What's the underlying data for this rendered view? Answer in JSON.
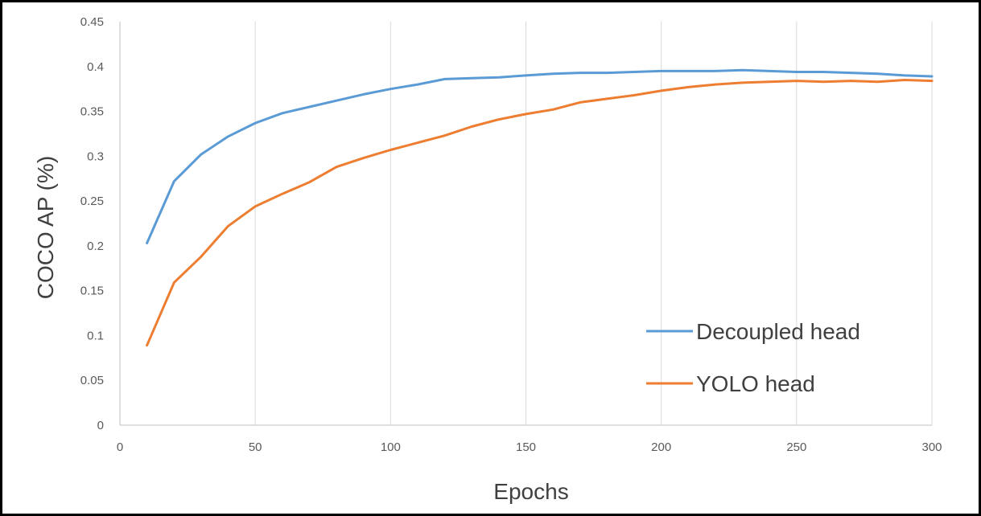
{
  "chart_data": {
    "type": "line",
    "title": "",
    "xlabel": "Epochs",
    "ylabel": "COCO AP (%)",
    "xlim": [
      0,
      300
    ],
    "ylim": [
      0,
      0.45
    ],
    "xticks": [
      0,
      50,
      100,
      150,
      200,
      250,
      300
    ],
    "xtick_labels": [
      "0",
      "50",
      "100",
      "150",
      "200",
      "250",
      "300"
    ],
    "yticks": [
      0,
      0.05,
      0.1,
      0.15,
      0.2,
      0.25,
      0.3,
      0.35,
      0.4,
      0.45
    ],
    "ytick_labels": [
      "0",
      "0.05",
      "0.1",
      "0.15",
      "0.2",
      "0.25",
      "0.3",
      "0.35",
      "0.4",
      "0.45"
    ],
    "grid": "vertical",
    "legend_position": "bottom-right",
    "x": [
      10,
      20,
      30,
      40,
      50,
      60,
      70,
      80,
      90,
      100,
      110,
      120,
      130,
      140,
      150,
      160,
      170,
      180,
      190,
      200,
      210,
      220,
      230,
      240,
      250,
      260,
      270,
      280,
      290,
      300
    ],
    "series": [
      {
        "name": "Decoupled head",
        "color": "#5B9BD5",
        "values": [
          0.203,
          0.272,
          0.302,
          0.322,
          0.337,
          0.348,
          0.355,
          0.362,
          0.369,
          0.375,
          0.38,
          0.386,
          0.387,
          0.388,
          0.39,
          0.392,
          0.393,
          0.393,
          0.394,
          0.395,
          0.395,
          0.395,
          0.396,
          0.395,
          0.394,
          0.394,
          0.393,
          0.392,
          0.39,
          0.389
        ]
      },
      {
        "name": "YOLO head",
        "color": "#ED7D31",
        "values": [
          0.089,
          0.159,
          0.188,
          0.222,
          0.244,
          0.258,
          0.271,
          0.288,
          0.298,
          0.307,
          0.315,
          0.323,
          0.333,
          0.341,
          0.347,
          0.352,
          0.36,
          0.364,
          0.368,
          0.373,
          0.377,
          0.38,
          0.382,
          0.383,
          0.384,
          0.383,
          0.384,
          0.383,
          0.385,
          0.384
        ]
      }
    ]
  }
}
